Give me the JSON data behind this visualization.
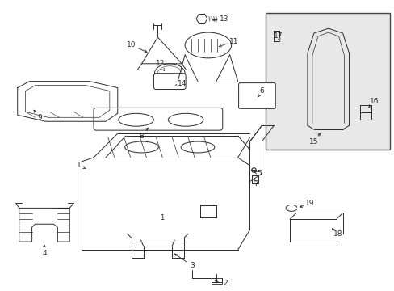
{
  "background_color": "#ffffff",
  "line_color": "#2a2a2a",
  "box_fill": "#e8e8e8",
  "figsize": [
    4.89,
    3.6
  ],
  "dpi": 100
}
